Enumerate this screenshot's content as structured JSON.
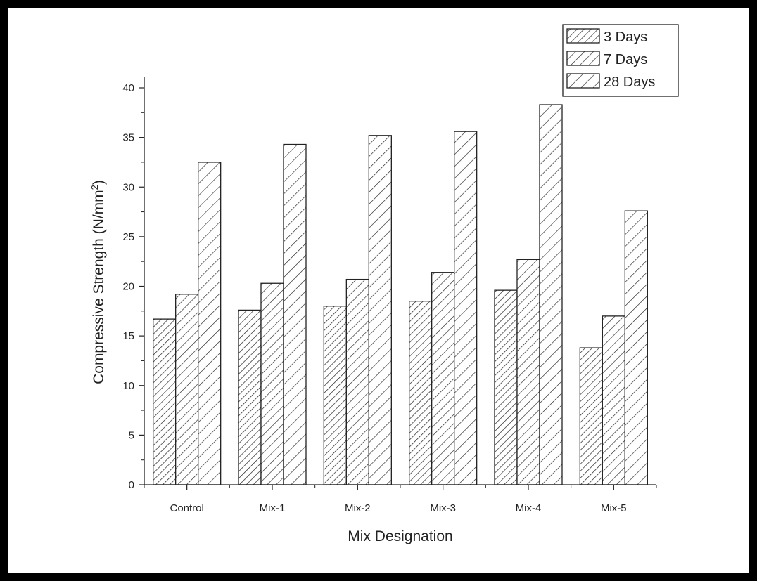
{
  "chart_data": {
    "type": "bar",
    "title": "",
    "xlabel": "Mix Designation",
    "ylabel": "Compressive Strength (N/mm",
    "ylabel_superscript": "2",
    "ylabel_suffix": ")",
    "categories": [
      "Control",
      "Mix-1",
      "Mix-2",
      "Mix-3",
      "Mix-4",
      "Mix-5"
    ],
    "series": [
      {
        "name": "3 Days",
        "values": [
          16.7,
          17.6,
          18.0,
          18.5,
          19.6,
          13.8
        ],
        "pattern": "dense-hatch"
      },
      {
        "name": "7 Days",
        "values": [
          19.2,
          20.3,
          20.7,
          21.4,
          22.7,
          17.0
        ],
        "pattern": "medium-hatch"
      },
      {
        "name": "28 Days",
        "values": [
          32.5,
          34.3,
          35.2,
          35.6,
          38.3,
          27.6
        ],
        "pattern": "sparse-hatch"
      }
    ],
    "ylim": [
      0,
      40
    ],
    "yticks": [
      "0",
      "5",
      "10",
      "15",
      "20",
      "25",
      "30",
      "35",
      "40"
    ],
    "grid": false,
    "legend_position": "top-right",
    "colors": {
      "bar_fill": "#ffffff",
      "stroke": "#222222"
    }
  }
}
